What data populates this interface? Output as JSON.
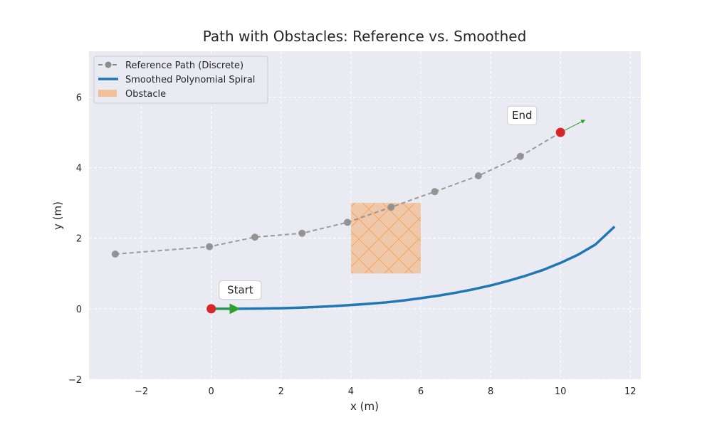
{
  "chart_data": {
    "type": "line",
    "title": "Path with Obstacles: Reference vs. Smoothed",
    "xlabel": "x (m)",
    "ylabel": "y (m)",
    "xlim": [
      -3.5,
      12.3
    ],
    "ylim": [
      -2.0,
      7.3
    ],
    "xticks": [
      -2,
      0,
      2,
      4,
      6,
      8,
      10,
      12
    ],
    "yticks": [
      -2,
      0,
      2,
      4,
      6
    ],
    "grid": true,
    "legend_position": "top-left",
    "series": [
      {
        "name": "Reference Path (Discrete)",
        "style": "dashed-markers",
        "color": "#8c8c8c",
        "x": [
          -2.75,
          -0.05,
          1.25,
          2.6,
          3.9,
          5.15,
          6.4,
          7.65,
          8.85,
          10.0
        ],
        "y": [
          1.55,
          1.76,
          2.03,
          2.14,
          2.45,
          2.88,
          3.32,
          3.77,
          4.32,
          5.0
        ]
      },
      {
        "name": "Smoothed Polynomial Spiral",
        "style": "solid",
        "color": "#1f77b4",
        "x": [
          0,
          0.5,
          1,
          1.5,
          2,
          2.5,
          3,
          3.5,
          4,
          4.5,
          5,
          5.5,
          6,
          6.5,
          7,
          7.5,
          8,
          8.5,
          9,
          9.5,
          10,
          10.5,
          11,
          11.55
        ],
        "y": [
          0,
          0,
          0.003,
          0.008,
          0.016,
          0.03,
          0.05,
          0.075,
          0.105,
          0.14,
          0.18,
          0.235,
          0.3,
          0.37,
          0.455,
          0.55,
          0.66,
          0.79,
          0.935,
          1.1,
          1.3,
          1.53,
          1.82,
          2.33
        ]
      }
    ],
    "obstacle": {
      "name": "Obstacle",
      "x_range": [
        4.0,
        6.0
      ],
      "y_range": [
        1.0,
        3.0
      ],
      "color": "#f4a460"
    },
    "annotations": [
      {
        "text": "Start",
        "x": 0.0,
        "y": 0.0,
        "label_x": 0.83,
        "label_y": 0.53
      },
      {
        "text": "End",
        "x": 10.0,
        "y": 5.0,
        "label_x": 8.9,
        "label_y": 5.48
      }
    ],
    "heading_arrows": [
      {
        "from": [
          0.0,
          0.0
        ],
        "to": [
          0.8,
          0.0
        ]
      },
      {
        "from": [
          10.0,
          5.0
        ],
        "to": [
          10.7,
          5.35
        ]
      }
    ],
    "marker_color": "#d62728",
    "arrow_color": "#2ca02c",
    "background_color": "#eaeaf2"
  }
}
